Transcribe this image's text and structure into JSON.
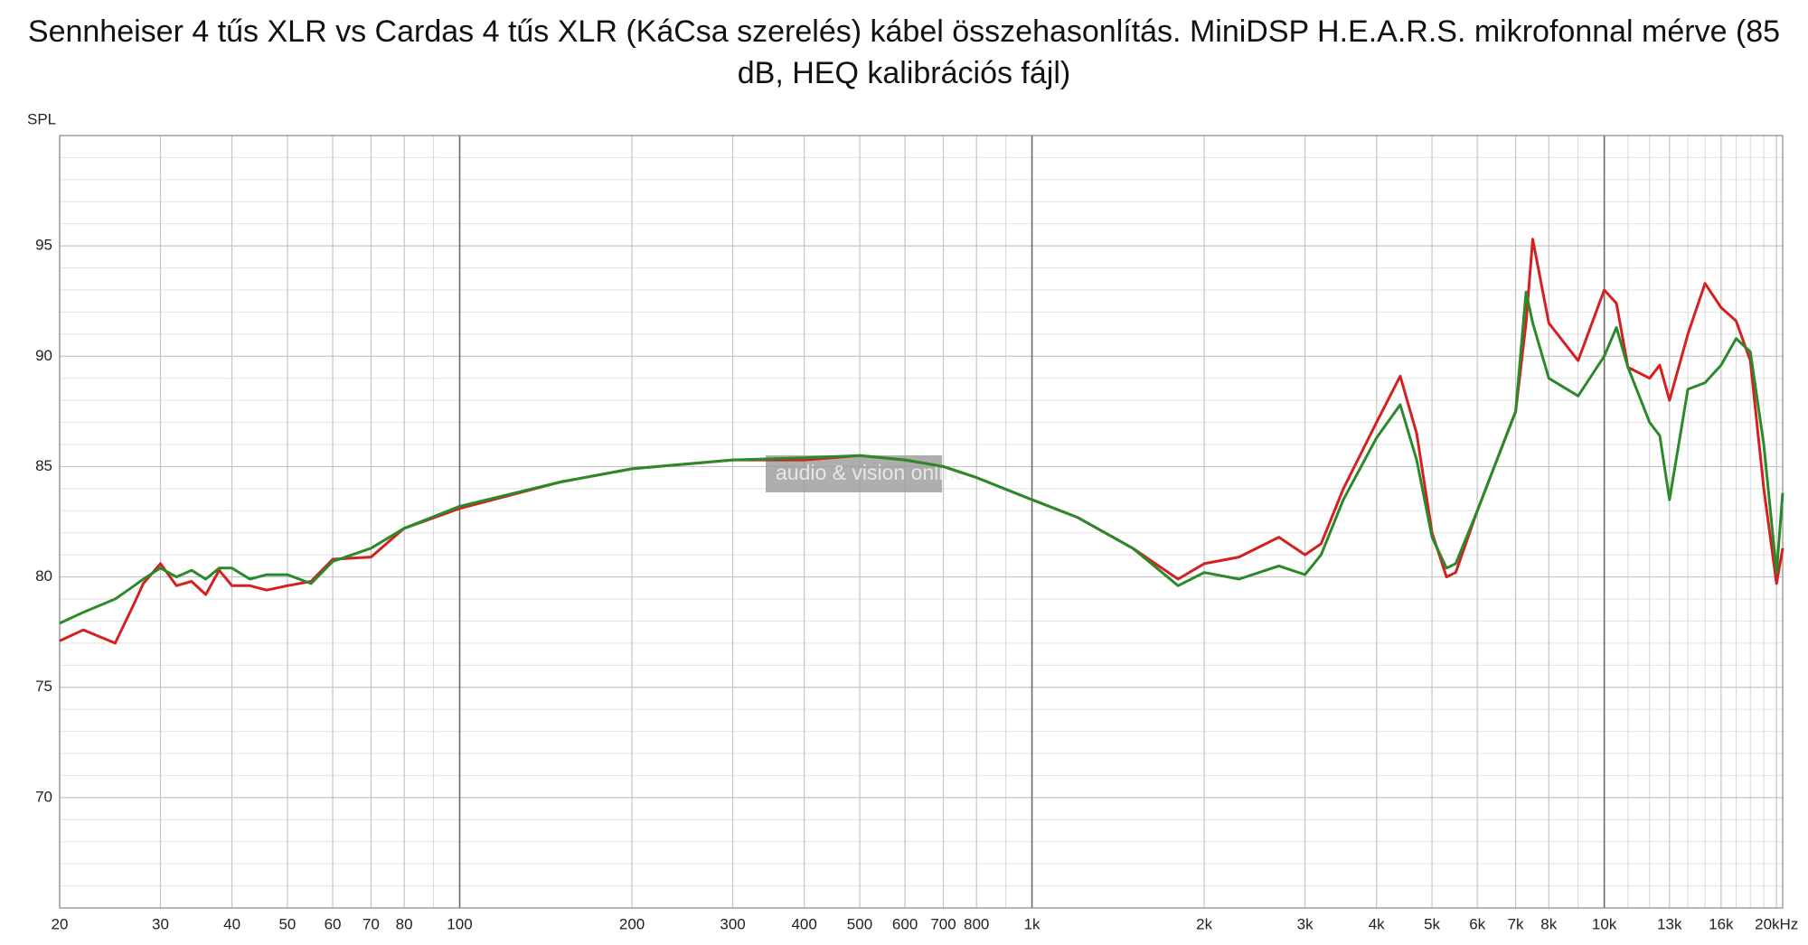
{
  "chart_data": {
    "type": "line",
    "title": "Sennheiser 4 tűs XLR vs Cardas 4 tűs XLR (KáCsa szerelés) kábel összehasonlítás. MiniDSP H.E.A.R.S. mikrofonnal mérve (85 dB, HEQ kalibrációs fájl)",
    "y_label": "SPL",
    "watermark": "audio & vision online",
    "xscale": "log",
    "grid": true,
    "xlim": [
      20,
      20500
    ],
    "ylim": [
      65,
      100
    ],
    "yticks": [
      70,
      75,
      80,
      85,
      90,
      95
    ],
    "ygrid_minor": [
      66,
      67,
      68,
      69,
      71,
      72,
      73,
      74,
      76,
      77,
      78,
      79,
      81,
      82,
      83,
      84,
      86,
      87,
      88,
      89,
      91,
      92,
      93,
      94,
      96,
      97,
      98,
      99
    ],
    "xticks": [
      20,
      30,
      40,
      50,
      60,
      70,
      80,
      100,
      200,
      300,
      400,
      500,
      600,
      700,
      800,
      {
        "value": 1000,
        "label": "1k"
      },
      {
        "value": 2000,
        "label": "2k"
      },
      {
        "value": 3000,
        "label": "3k"
      },
      {
        "value": 4000,
        "label": "4k"
      },
      {
        "value": 5000,
        "label": "5k"
      },
      {
        "value": 6000,
        "label": "6k"
      },
      {
        "value": 7000,
        "label": "7k"
      },
      {
        "value": 8000,
        "label": "8k"
      },
      {
        "value": 10000,
        "label": "10k"
      },
      {
        "value": 13000,
        "label": "13k"
      },
      {
        "value": 16000,
        "label": "16k"
      },
      {
        "value": 20000,
        "label": "20kHz"
      }
    ],
    "xgrid_minor": [
      90,
      900,
      9000,
      11000,
      12000,
      14000,
      15000,
      17000,
      18000,
      19000
    ],
    "x": [
      20,
      22,
      25,
      27,
      28,
      30,
      32,
      34,
      36,
      38,
      40,
      43,
      46,
      50,
      55,
      60,
      70,
      80,
      100,
      150,
      200,
      300,
      400,
      500,
      600,
      700,
      800,
      1000,
      1200,
      1500,
      1800,
      2000,
      2300,
      2700,
      3000,
      3200,
      3500,
      4000,
      4400,
      4700,
      5000,
      5300,
      5500,
      6000,
      7000,
      7300,
      7500,
      8000,
      9000,
      10000,
      10500,
      11000,
      12000,
      12500,
      13000,
      14000,
      15000,
      16000,
      17000,
      18000,
      19000,
      20000,
      20500
    ],
    "series": [
      {
        "color": "#d42020",
        "values": [
          77.1,
          77.6,
          77.0,
          78.8,
          79.7,
          80.6,
          79.6,
          79.8,
          79.2,
          80.3,
          79.6,
          79.6,
          79.4,
          79.6,
          79.8,
          80.8,
          80.9,
          82.2,
          83.1,
          84.3,
          84.9,
          85.3,
          85.3,
          85.5,
          85.3,
          85.0,
          84.5,
          83.5,
          82.7,
          81.3,
          79.9,
          80.6,
          80.9,
          81.8,
          81.0,
          81.5,
          84.0,
          87.0,
          89.1,
          86.5,
          82.0,
          80.0,
          80.2,
          83.0,
          87.5,
          91.5,
          95.3,
          91.5,
          89.8,
          93.0,
          92.4,
          89.5,
          89.0,
          89.6,
          88.0,
          91.0,
          93.3,
          92.2,
          91.6,
          89.8,
          84.0,
          79.7,
          81.3
        ]
      },
      {
        "color": "#2a8a2a",
        "values": [
          77.9,
          78.4,
          79.0,
          79.6,
          79.9,
          80.4,
          80.0,
          80.3,
          79.9,
          80.4,
          80.4,
          79.9,
          80.1,
          80.1,
          79.7,
          80.7,
          81.3,
          82.2,
          83.2,
          84.3,
          84.9,
          85.3,
          85.4,
          85.5,
          85.3,
          85.0,
          84.5,
          83.5,
          82.7,
          81.3,
          79.6,
          80.2,
          79.9,
          80.5,
          80.1,
          81.0,
          83.5,
          86.3,
          87.8,
          85.3,
          81.8,
          80.4,
          80.6,
          83.0,
          87.5,
          92.9,
          91.5,
          89.0,
          88.2,
          90.0,
          91.3,
          89.5,
          87.0,
          86.4,
          83.5,
          88.5,
          88.8,
          89.6,
          90.8,
          90.2,
          86.0,
          80.2,
          83.8
        ]
      }
    ]
  }
}
